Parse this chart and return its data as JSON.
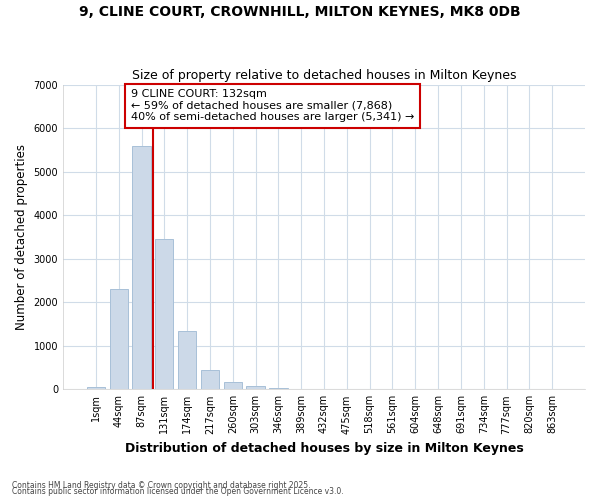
{
  "title1": "9, CLINE COURT, CROWNHILL, MILTON KEYNES, MK8 0DB",
  "title2": "Size of property relative to detached houses in Milton Keynes",
  "xlabel": "Distribution of detached houses by size in Milton Keynes",
  "ylabel": "Number of detached properties",
  "categories": [
    "1sqm",
    "44sqm",
    "87sqm",
    "131sqm",
    "174sqm",
    "217sqm",
    "260sqm",
    "303sqm",
    "346sqm",
    "389sqm",
    "432sqm",
    "475sqm",
    "518sqm",
    "561sqm",
    "604sqm",
    "648sqm",
    "691sqm",
    "734sqm",
    "777sqm",
    "820sqm",
    "863sqm"
  ],
  "values": [
    50,
    2300,
    5600,
    3450,
    1350,
    450,
    175,
    65,
    30,
    10,
    5,
    0,
    0,
    0,
    0,
    0,
    0,
    0,
    0,
    0,
    0
  ],
  "bar_color": "#ccd9e8",
  "bar_edgecolor": "#a8c0d8",
  "vline_position": 2.5,
  "vline_color": "#cc0000",
  "annotation_title": "9 CLINE COURT: 132sqm",
  "annotation_line1": "← 59% of detached houses are smaller (7,868)",
  "annotation_line2": "40% of semi-detached houses are larger (5,341) →",
  "annotation_box_color": "#cc0000",
  "ylim": [
    0,
    7000
  ],
  "yticks": [
    0,
    1000,
    2000,
    3000,
    4000,
    5000,
    6000,
    7000
  ],
  "footer1": "Contains HM Land Registry data © Crown copyright and database right 2025.",
  "footer2": "Contains public sector information licensed under the Open Government Licence v3.0.",
  "bg_color": "#ffffff",
  "plot_bg_color": "#ffffff",
  "grid_color": "#d0dce8"
}
